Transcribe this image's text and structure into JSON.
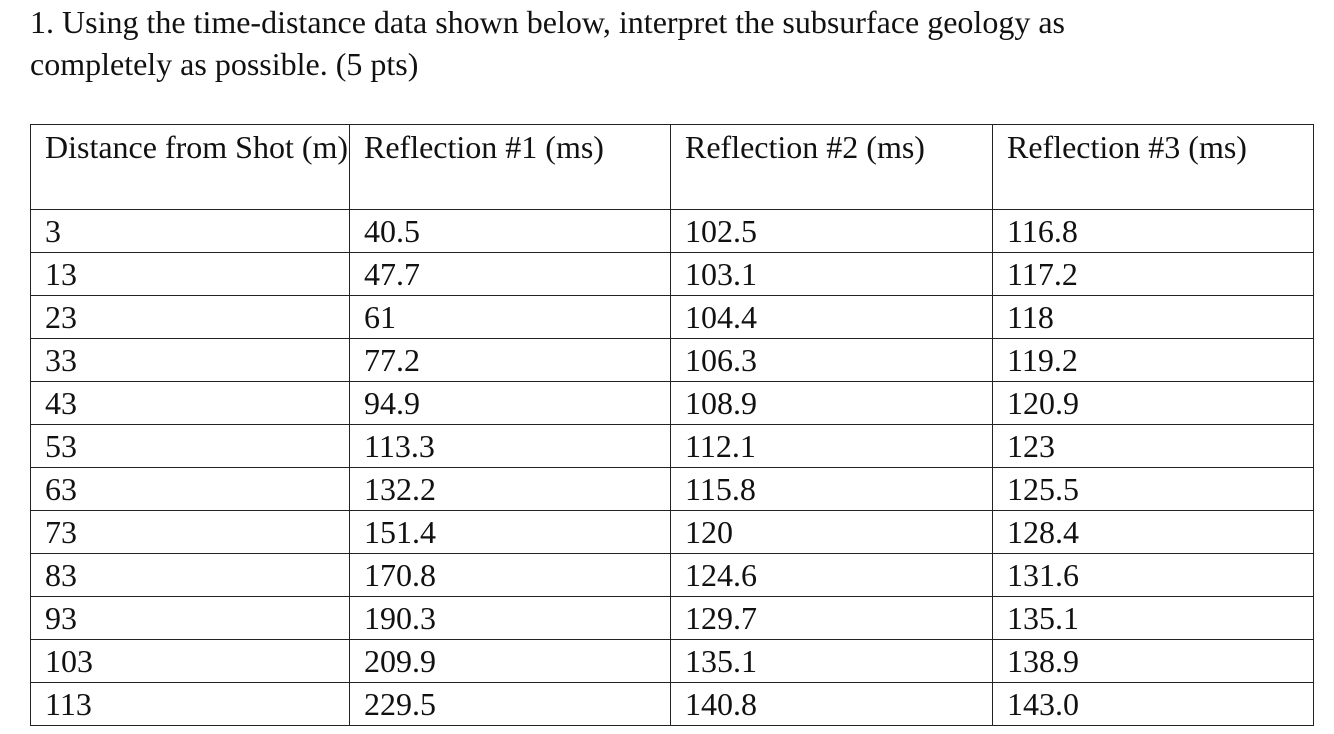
{
  "question": {
    "lines": [
      "1. Using the time-distance data shown below, interpret the subsurface geology as",
      "completely as possible. (5 pts)"
    ]
  },
  "table": {
    "header": [
      "Distance from Shot (m)",
      "Reflection #1 (ms)",
      "Reflection #2 (ms)",
      "Reflection #3 (ms)"
    ],
    "rows": [
      [
        "3",
        "40.5",
        "102.5",
        "116.8"
      ],
      [
        "13",
        "47.7",
        "103.1",
        "117.2"
      ],
      [
        "23",
        "61",
        "104.4",
        "118"
      ],
      [
        "33",
        "77.2",
        "106.3",
        "119.2"
      ],
      [
        "43",
        "94.9",
        "108.9",
        "120.9"
      ],
      [
        "53",
        "113.3",
        "112.1",
        "123"
      ],
      [
        "63",
        "132.2",
        "115.8",
        "125.5"
      ],
      [
        "73",
        "151.4",
        "120",
        "128.4"
      ],
      [
        "83",
        "170.8",
        "124.6",
        "131.6"
      ],
      [
        "93",
        "190.3",
        "129.7",
        "135.1"
      ],
      [
        "103",
        "209.9",
        "135.1",
        "138.9"
      ],
      [
        "113",
        "229.5",
        "140.8",
        "143.0"
      ]
    ]
  }
}
